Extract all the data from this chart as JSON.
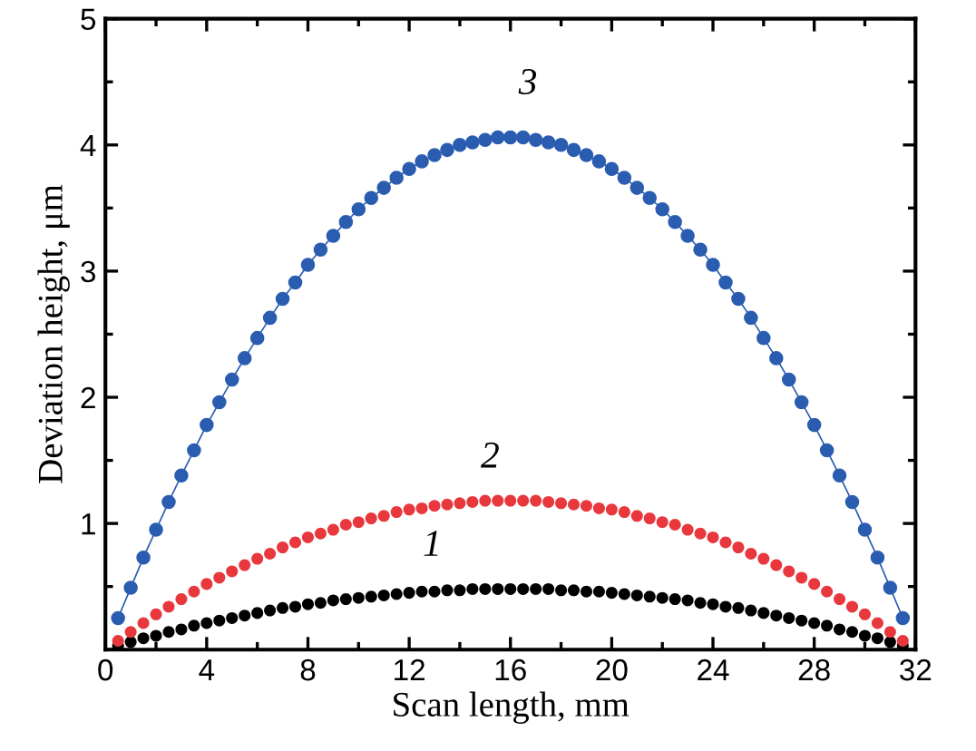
{
  "chart_data": {
    "type": "line",
    "xlabel": "Scan length, mm",
    "ylabel": "Deviation height, μm",
    "x": [
      0.5,
      1,
      1.5,
      2,
      2.5,
      3,
      3.5,
      4,
      4.5,
      5,
      5.5,
      6,
      6.5,
      7,
      7.5,
      8,
      8.5,
      9,
      9.5,
      10,
      10.5,
      11,
      11.5,
      12,
      12.5,
      13,
      13.5,
      14,
      14.5,
      15,
      15.5,
      16,
      16.5,
      17,
      17.5,
      18,
      18.5,
      19,
      19.5,
      20,
      20.5,
      21,
      21.5,
      22,
      22.5,
      23,
      23.5,
      24,
      24.5,
      25,
      25.5,
      26,
      26.5,
      27,
      27.5,
      28,
      28.5,
      29,
      29.5,
      30,
      30.5,
      31,
      31.5
    ],
    "series": [
      {
        "type": "scatter",
        "color": "#000000",
        "values": [
          0.03,
          0.06,
          0.09,
          0.11,
          0.14,
          0.16,
          0.19,
          0.21,
          0.23,
          0.25,
          0.27,
          0.29,
          0.31,
          0.33,
          0.34,
          0.36,
          0.37,
          0.39,
          0.4,
          0.41,
          0.42,
          0.43,
          0.44,
          0.45,
          0.46,
          0.46,
          0.47,
          0.47,
          0.48,
          0.48,
          0.48,
          0.48,
          0.48,
          0.48,
          0.48,
          0.47,
          0.47,
          0.46,
          0.46,
          0.45,
          0.44,
          0.43,
          0.42,
          0.41,
          0.4,
          0.39,
          0.37,
          0.36,
          0.34,
          0.33,
          0.31,
          0.29,
          0.27,
          0.25,
          0.23,
          0.21,
          0.19,
          0.16,
          0.14,
          0.11,
          0.09,
          0.06,
          0.03
        ]
      },
      {
        "type": "scatter",
        "color": "#e8383d",
        "values": [
          0.07,
          0.14,
          0.21,
          0.28,
          0.34,
          0.4,
          0.46,
          0.52,
          0.57,
          0.62,
          0.67,
          0.72,
          0.76,
          0.81,
          0.85,
          0.89,
          0.92,
          0.95,
          0.99,
          1.01,
          1.04,
          1.06,
          1.09,
          1.11,
          1.12,
          1.14,
          1.15,
          1.16,
          1.17,
          1.18,
          1.18,
          1.18,
          1.18,
          1.18,
          1.17,
          1.16,
          1.15,
          1.14,
          1.12,
          1.11,
          1.09,
          1.06,
          1.04,
          1.01,
          0.99,
          0.95,
          0.92,
          0.89,
          0.85,
          0.81,
          0.76,
          0.72,
          0.67,
          0.62,
          0.57,
          0.52,
          0.46,
          0.4,
          0.34,
          0.28,
          0.21,
          0.14,
          0.07
        ]
      },
      {
        "color": "#2a5db0",
        "values": [
          0.25,
          0.49,
          0.73,
          0.95,
          1.17,
          1.38,
          1.58,
          1.78,
          1.96,
          2.14,
          2.31,
          2.47,
          2.63,
          2.78,
          2.91,
          3.05,
          3.17,
          3.28,
          3.39,
          3.49,
          3.58,
          3.66,
          3.74,
          3.81,
          3.87,
          3.92,
          3.96,
          4.0,
          4.02,
          4.04,
          4.06,
          4.06,
          4.06,
          4.04,
          4.02,
          4.0,
          3.96,
          3.92,
          3.87,
          3.81,
          3.74,
          3.66,
          3.58,
          3.49,
          3.39,
          3.28,
          3.17,
          3.05,
          2.91,
          2.78,
          2.63,
          2.47,
          2.31,
          2.14,
          1.96,
          1.78,
          1.58,
          1.38,
          1.17,
          0.95,
          0.73,
          0.49,
          0.25
        ]
      }
    ],
    "annotations": [
      "1",
      "2",
      "3"
    ],
    "xlim": [
      0,
      32
    ],
    "xticks": [
      0,
      4,
      8,
      12,
      16,
      20,
      24,
      28,
      32
    ],
    "ylim": [
      0,
      5
    ],
    "yticks": [
      {
        "value": 0,
        "label": null
      },
      1,
      2,
      3,
      4,
      5
    ],
    "marker": "circle",
    "line_style": "solid",
    "grid": false,
    "legend": false
  }
}
